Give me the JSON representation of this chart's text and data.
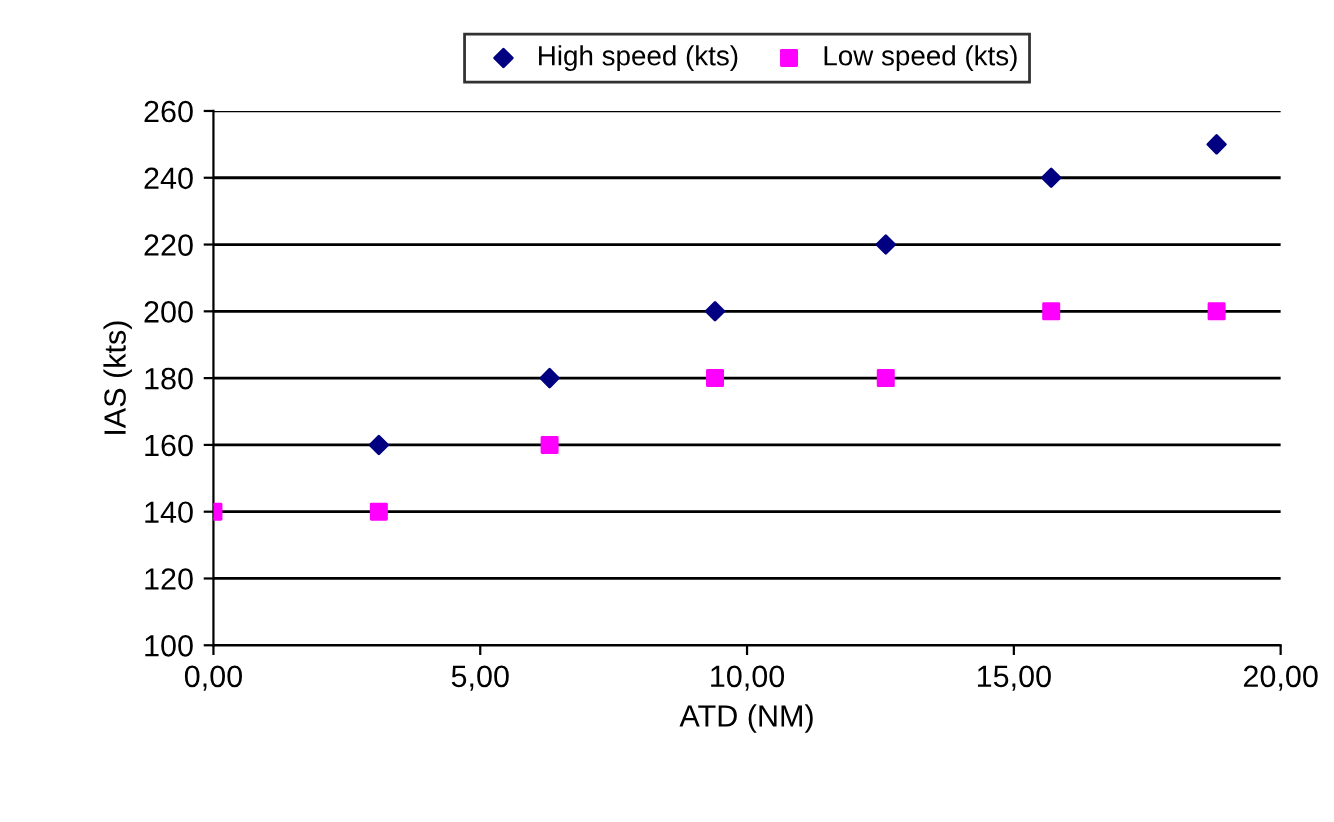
{
  "chart_data": {
    "type": "scatter",
    "xlabel": "ATD (NM)",
    "ylabel": "IAS (kts)",
    "x": [
      0,
      3.1,
      6.3,
      9.4,
      12.6,
      15.7,
      18.8
    ],
    "series": [
      {
        "name": "High speed (kts)",
        "color": "#000080",
        "marker": "diamond",
        "values": [
          null,
          160,
          180,
          200,
          220,
          240,
          250
        ]
      },
      {
        "name": "Low speed (kts)",
        "color": "#ff00ff",
        "marker": "square",
        "values": [
          140,
          140,
          160,
          180,
          180,
          200,
          200
        ]
      }
    ],
    "xlim": [
      0,
      20
    ],
    "xticks": [
      {
        "value": 0,
        "label": "0,00"
      },
      {
        "value": 5,
        "label": "5,00"
      },
      {
        "value": 10,
        "label": "10,00"
      },
      {
        "value": 15,
        "label": "15,00"
      },
      {
        "value": 20,
        "label": "20,00"
      }
    ],
    "ylim": [
      100,
      260
    ],
    "yticks": [
      100,
      120,
      140,
      160,
      180,
      200,
      220,
      240,
      260
    ],
    "grid": "y",
    "legend": "top"
  }
}
